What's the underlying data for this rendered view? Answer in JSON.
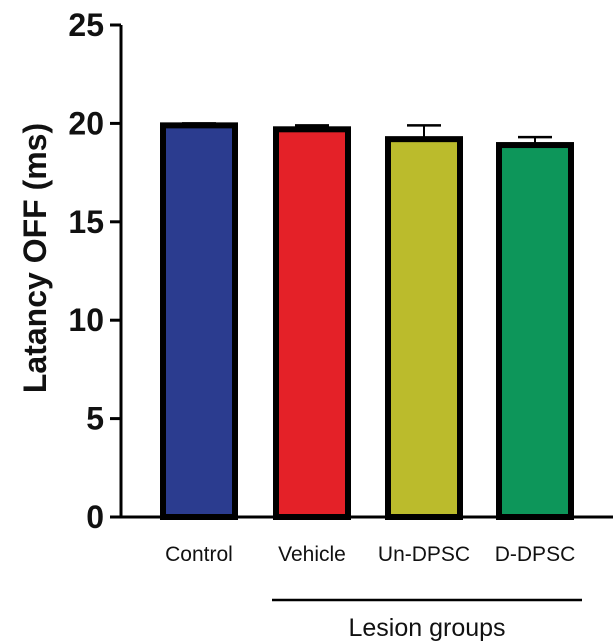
{
  "chart_data": {
    "type": "bar",
    "title": "",
    "ylabel": "Latancy OFF (ms)",
    "xlabel": "Lesion groups",
    "ylim": [
      0,
      25
    ],
    "yticks": [
      "0",
      "5",
      "10",
      "15",
      "20",
      "25"
    ],
    "categories": [
      "Control",
      "Vehicle",
      "Un-DPSC",
      "D-DPSC"
    ],
    "values": [
      19.9,
      19.7,
      19.2,
      18.9
    ],
    "errors": [
      0.1,
      0.2,
      0.7,
      0.4
    ],
    "colors": [
      "#2b3c8f",
      "#e42128",
      "#bbbb2c",
      "#0d965a"
    ],
    "group_bracket": {
      "label": "Lesion groups",
      "categories": [
        "Vehicle",
        "Un-DPSC",
        "D-DPSC"
      ]
    },
    "grid": false,
    "legend": "none"
  }
}
